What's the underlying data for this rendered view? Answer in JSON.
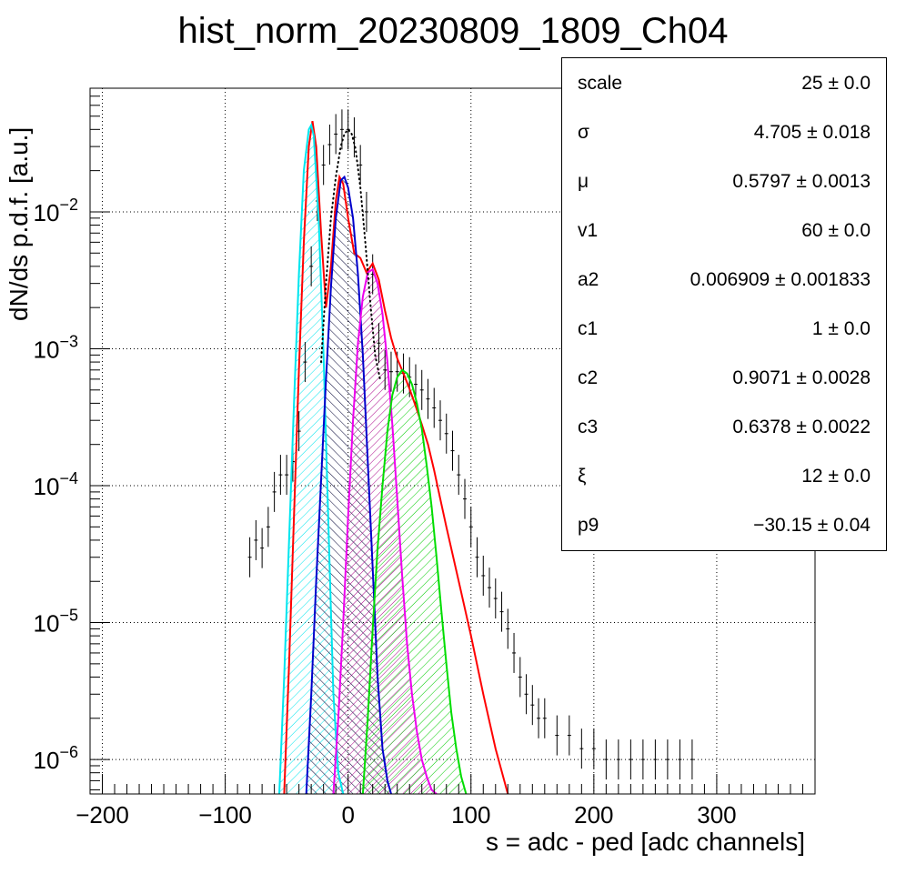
{
  "chart_data": {
    "type": "line",
    "title": "hist_norm_20230809_1809_Ch04",
    "xlabel": "s = adc - ped [adc channels]",
    "ylabel": "dN/ds p.d.f. [a.u.]",
    "xlim": [
      -210,
      380
    ],
    "ylim": [
      5.6e-07,
      0.08
    ],
    "yscale": "log",
    "grid": true,
    "x_ticks": [
      "−200",
      "−100",
      "0",
      "100",
      "200",
      "300"
    ],
    "x_tick_values": [
      -200,
      -100,
      0,
      100,
      200,
      300
    ],
    "y_ticks": [
      {
        "base": "10",
        "exp": "−2",
        "value": 0.01
      },
      {
        "base": "10",
        "exp": "−3",
        "value": 0.001
      },
      {
        "base": "10",
        "exp": "−4",
        "value": 0.0001
      },
      {
        "base": "10",
        "exp": "−5",
        "value": 1e-05
      },
      {
        "base": "10",
        "exp": "−6",
        "value": 1e-06
      }
    ],
    "data_points": {
      "x": [
        -80,
        -75,
        -70,
        -65,
        -60,
        -55,
        -50,
        -45,
        -40,
        -35,
        -30,
        -25,
        -20,
        -15,
        -10,
        -5,
        0,
        5,
        10,
        15,
        20,
        25,
        30,
        35,
        40,
        45,
        50,
        55,
        60,
        65,
        70,
        75,
        80,
        85,
        90,
        95,
        100,
        105,
        110,
        115,
        120,
        125,
        130,
        135,
        140,
        145,
        150,
        155,
        160,
        170,
        180,
        190,
        200,
        210,
        220,
        230,
        240,
        250,
        260,
        270,
        280
      ],
      "y": [
        3e-05,
        4e-05,
        3.5e-05,
        5e-05,
        9e-05,
        0.00012,
        0.00012,
        0.00015,
        0.00025,
        0.0008,
        0.004,
        0.012,
        0.022,
        0.031,
        0.037,
        0.04,
        0.04,
        0.035,
        0.022,
        0.01,
        0.0035,
        0.0011,
        0.0007,
        0.00068,
        0.00068,
        0.00066,
        0.00062,
        0.00055,
        0.0005,
        0.00043,
        0.00037,
        0.0003,
        0.00024,
        0.00018,
        0.00012,
        8e-05,
        5e-05,
        3e-05,
        2.2e-05,
        1.8e-05,
        1.5e-05,
        1.2e-05,
        9e-06,
        6e-06,
        4e-06,
        3e-06,
        2.5e-06,
        2e-06,
        2e-06,
        1.5e-06,
        1.5e-06,
        1.2e-06,
        1.2e-06,
        1e-06,
        1e-06,
        1e-06,
        1e-06,
        1e-06,
        1e-06,
        1e-06,
        1e-06
      ]
    },
    "series": [
      {
        "name": "total",
        "color": "#ff0000",
        "x": [
          -52,
          -48,
          -44,
          -40,
          -36,
          -32,
          -29,
          -26,
          -22,
          -18,
          -14,
          -10,
          -7,
          -4,
          0,
          5,
          10,
          15,
          20,
          25,
          30,
          35,
          40,
          45,
          50,
          55,
          60,
          65,
          70,
          75,
          80,
          90,
          100,
          110,
          120,
          130
        ],
        "y": [
          5.6e-07,
          5e-06,
          6e-05,
          0.0007,
          0.006,
          0.03,
          0.046,
          0.03,
          0.007,
          0.002,
          0.004,
          0.012,
          0.018,
          0.016,
          0.009,
          0.005,
          0.0046,
          0.0036,
          0.0042,
          0.0032,
          0.0019,
          0.0012,
          0.00085,
          0.00066,
          0.00051,
          0.00038,
          0.00028,
          0.0002,
          0.00013,
          8e-05,
          5e-05,
          2e-05,
          8e-06,
          3e-06,
          1.2e-06,
          5.6e-07
        ]
      },
      {
        "name": "cyan",
        "color": "#00e5ee",
        "fill": true,
        "x": [
          -56,
          -52,
          -48,
          -44,
          -40,
          -36,
          -32,
          -30,
          -28,
          -24,
          -20,
          -16,
          -12,
          -8,
          -4
        ],
        "y": [
          5.6e-07,
          4e-06,
          4e-05,
          0.0004,
          0.0035,
          0.02,
          0.04,
          0.043,
          0.036,
          0.009,
          0.0009,
          5e-05,
          3e-06,
          8e-07,
          5.6e-07
        ]
      },
      {
        "name": "blue",
        "color": "#0000cc",
        "fill": true,
        "x": [
          -34,
          -30,
          -26,
          -22,
          -18,
          -14,
          -10,
          -6,
          -3,
          0,
          4,
          8,
          12,
          16,
          20,
          24,
          28,
          32,
          35
        ],
        "y": [
          5.6e-07,
          3e-06,
          2e-05,
          0.00011,
          0.0006,
          0.0028,
          0.009,
          0.017,
          0.018,
          0.015,
          0.009,
          0.0035,
          0.0009,
          0.00015,
          2.5e-05,
          4e-06,
          1.2e-06,
          7e-07,
          5.6e-07
        ]
      },
      {
        "name": "magenta",
        "color": "#ee00ee",
        "fill": true,
        "x": [
          -12,
          -8,
          -4,
          0,
          4,
          8,
          12,
          16,
          20,
          24,
          28,
          32,
          36,
          40,
          44,
          48,
          52,
          56,
          60,
          64,
          68,
          72
        ],
        "y": [
          5.6e-07,
          2e-06,
          1e-05,
          6e-05,
          0.0003,
          0.0011,
          0.0024,
          0.0036,
          0.0038,
          0.003,
          0.0018,
          0.0008,
          0.00028,
          8e-05,
          2.2e-05,
          7e-06,
          3e-06,
          1.6e-06,
          1e-06,
          7.5e-07,
          6e-07,
          5.6e-07
        ]
      },
      {
        "name": "green",
        "color": "#00dd00",
        "fill": true,
        "x": [
          12,
          16,
          20,
          24,
          28,
          32,
          36,
          40,
          44,
          48,
          52,
          56,
          60,
          64,
          68,
          72,
          76,
          80,
          84,
          88,
          92,
          96
        ],
        "y": [
          5.6e-07,
          2e-06,
          9e-06,
          3.5e-05,
          0.0001,
          0.00025,
          0.00046,
          0.00062,
          0.0007,
          0.00066,
          0.00055,
          0.0004,
          0.00026,
          0.00014,
          7e-05,
          3e-05,
          1.2e-05,
          5e-06,
          2.2e-06,
          1.2e-06,
          7.5e-07,
          5.6e-07
        ]
      },
      {
        "name": "pedestal",
        "color": "#000000",
        "dotted": true,
        "x": [
          -22,
          -18,
          -14,
          -10,
          -6,
          -3,
          0,
          3,
          6,
          10,
          14,
          18,
          22,
          26
        ],
        "y": [
          0.0008,
          0.003,
          0.009,
          0.018,
          0.03,
          0.037,
          0.04,
          0.037,
          0.029,
          0.015,
          0.006,
          0.0022,
          0.0009,
          0.0006
        ]
      }
    ]
  },
  "stats": {
    "rows": [
      {
        "name": "scale",
        "value": "25 ± 0.0"
      },
      {
        "name": "σ",
        "value": "4.705 ± 0.018"
      },
      {
        "name": "μ",
        "value": "0.5797 ± 0.0013"
      },
      {
        "name": "v1",
        "value": "60 ± 0.0"
      },
      {
        "name": "a2",
        "value": "0.006909 ± 0.001833"
      },
      {
        "name": "c1",
        "value": "1 ± 0.0"
      },
      {
        "name": "c2",
        "value": "0.9071 ± 0.0028"
      },
      {
        "name": "c3",
        "value": "0.6378 ± 0.0022"
      },
      {
        "name": "ξ",
        "value": "12 ± 0.0"
      },
      {
        "name": "p9",
        "value": "−30.15 ± 0.04"
      }
    ]
  }
}
